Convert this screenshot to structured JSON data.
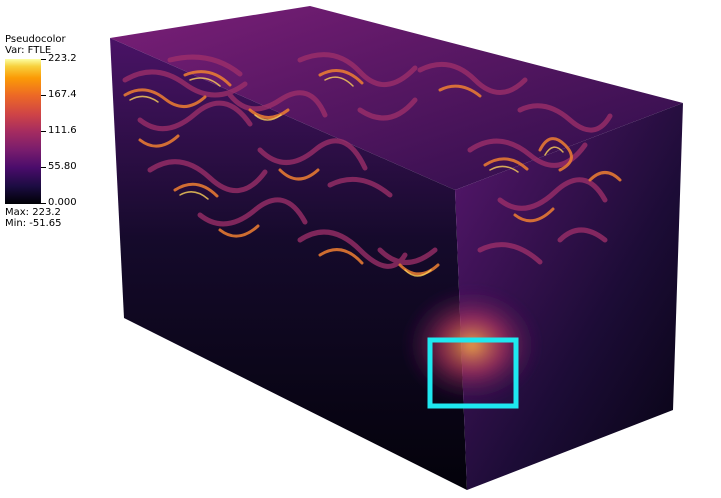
{
  "legend": {
    "title": "Pseudocolor",
    "variable": "Var: FTLE",
    "ticks": [
      "223.2",
      "167.4",
      "111.6",
      "55.80",
      "0.000"
    ],
    "max_label": "Max:  223.2",
    "min_label": "Min: -51.65"
  },
  "colors": {
    "background": "#ffffff",
    "highlight_box": "#1ee8f0",
    "volume_dark": "#06030f",
    "volume_mid": "#6a1a7a",
    "volume_bright": "#f7a33a"
  }
}
